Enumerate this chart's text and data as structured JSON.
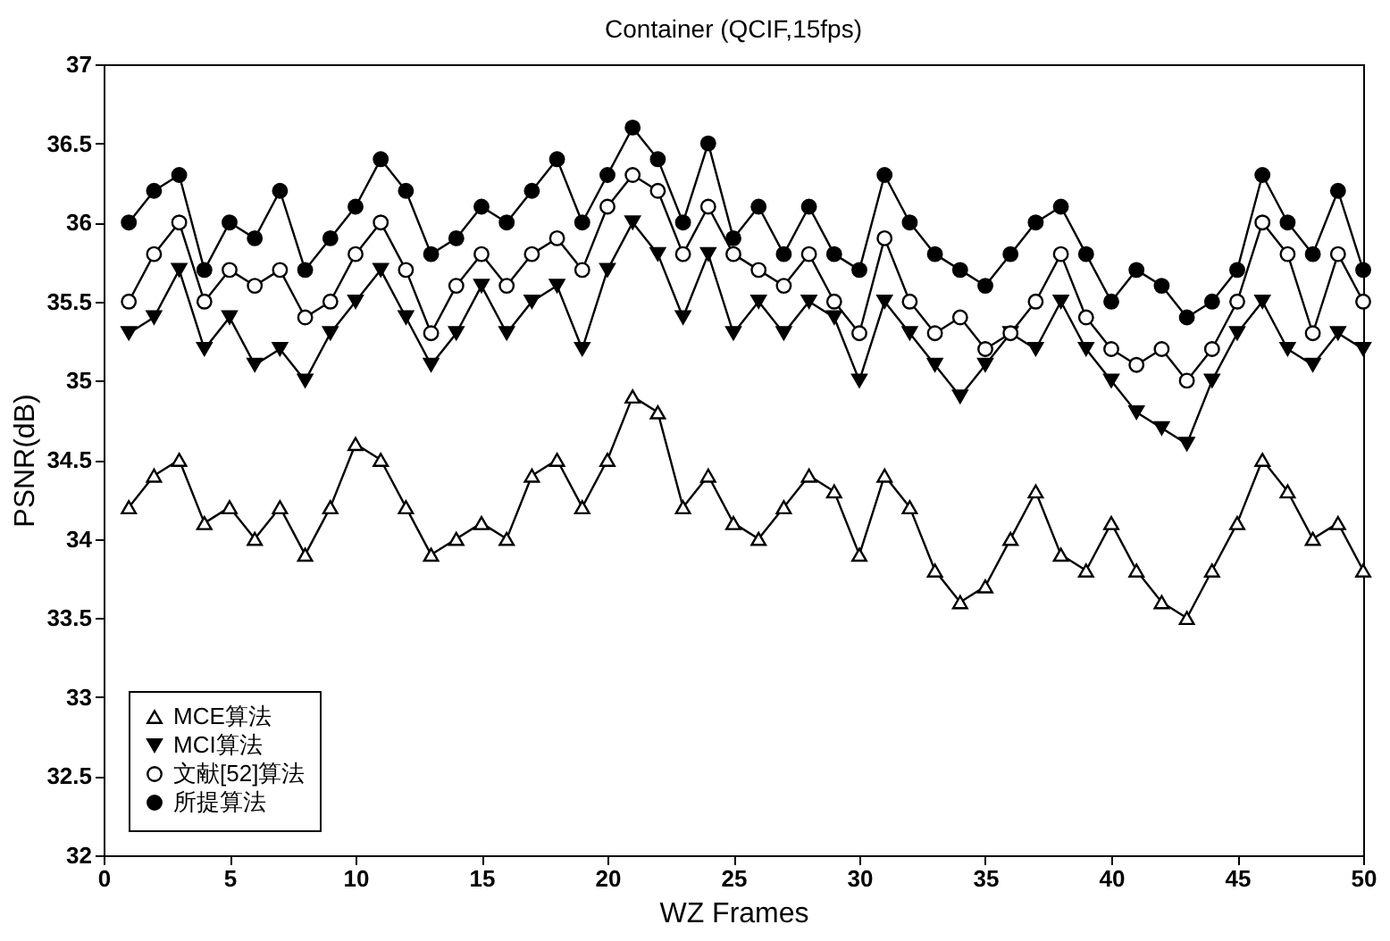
{
  "chart_data": {
    "type": "line",
    "title": "Container (QCIF,15fps)",
    "xlabel": "WZ Frames",
    "ylabel": "PSNR(dB)",
    "x": [
      1,
      2,
      3,
      4,
      5,
      6,
      7,
      8,
      9,
      10,
      11,
      12,
      13,
      14,
      15,
      16,
      17,
      18,
      19,
      20,
      21,
      22,
      23,
      24,
      25,
      26,
      27,
      28,
      29,
      30,
      31,
      32,
      33,
      34,
      35,
      36,
      37,
      38,
      39,
      40,
      41,
      42,
      43,
      44,
      45,
      46,
      47,
      48,
      49,
      50
    ],
    "series": [
      {
        "name": "MCE算法",
        "color": "#000000",
        "marker": "triangle-open",
        "values": [
          34.2,
          34.4,
          34.5,
          34.1,
          34.2,
          34.0,
          34.2,
          33.9,
          34.2,
          34.6,
          34.5,
          34.2,
          33.9,
          34.0,
          34.1,
          34.0,
          34.4,
          34.5,
          34.2,
          34.5,
          34.9,
          34.8,
          34.2,
          34.4,
          34.1,
          34.0,
          34.2,
          34.4,
          34.3,
          33.9,
          34.4,
          34.2,
          33.8,
          33.6,
          33.7,
          34.0,
          34.3,
          33.9,
          33.8,
          34.1,
          33.8,
          33.6,
          33.5,
          33.8,
          34.1,
          34.5,
          34.3,
          34.0,
          34.1,
          33.8
        ]
      },
      {
        "name": "MCI算法",
        "color": "#000000",
        "marker": "triangle-down",
        "values": [
          35.3,
          35.4,
          35.7,
          35.2,
          35.4,
          35.1,
          35.2,
          35.0,
          35.3,
          35.5,
          35.7,
          35.4,
          35.1,
          35.3,
          35.6,
          35.3,
          35.5,
          35.6,
          35.2,
          35.7,
          36.0,
          35.8,
          35.4,
          35.8,
          35.3,
          35.5,
          35.3,
          35.5,
          35.4,
          35.0,
          35.5,
          35.3,
          35.1,
          34.9,
          35.1,
          35.3,
          35.2,
          35.5,
          35.2,
          35.0,
          34.8,
          34.7,
          34.6,
          35.0,
          35.3,
          35.5,
          35.2,
          35.1,
          35.3,
          35.2
        ]
      },
      {
        "name": "文献[52]算法",
        "color": "#000000",
        "marker": "circle-open",
        "values": [
          35.5,
          35.8,
          36.0,
          35.5,
          35.7,
          35.6,
          35.7,
          35.4,
          35.5,
          35.8,
          36.0,
          35.7,
          35.3,
          35.6,
          35.8,
          35.6,
          35.8,
          35.9,
          35.7,
          36.1,
          36.3,
          36.2,
          35.8,
          36.1,
          35.8,
          35.7,
          35.6,
          35.8,
          35.5,
          35.3,
          35.9,
          35.5,
          35.3,
          35.4,
          35.2,
          35.3,
          35.5,
          35.8,
          35.4,
          35.2,
          35.1,
          35.2,
          35.0,
          35.2,
          35.5,
          36.0,
          35.8,
          35.3,
          35.8,
          35.5
        ]
      },
      {
        "name": "所提算法",
        "color": "#000000",
        "marker": "circle",
        "values": [
          36.0,
          36.2,
          36.3,
          35.7,
          36.0,
          35.9,
          36.2,
          35.7,
          35.9,
          36.1,
          36.4,
          36.2,
          35.8,
          35.9,
          36.1,
          36.0,
          36.2,
          36.4,
          36.0,
          36.3,
          36.6,
          36.4,
          36.0,
          36.5,
          35.9,
          36.1,
          35.8,
          36.1,
          35.8,
          35.7,
          36.3,
          36.0,
          35.8,
          35.7,
          35.6,
          35.8,
          36.0,
          36.1,
          35.8,
          35.5,
          35.7,
          35.6,
          35.4,
          35.5,
          35.7,
          36.3,
          36.0,
          35.8,
          36.2,
          35.7
        ]
      }
    ],
    "xlim": [
      0,
      50
    ],
    "xticks": [
      0,
      5,
      10,
      15,
      20,
      25,
      30,
      35,
      40,
      45,
      50
    ],
    "ylim": [
      32,
      37
    ],
    "yticks": [
      32,
      32.5,
      33,
      33.5,
      34,
      34.5,
      35,
      35.5,
      36,
      36.5,
      37
    ],
    "grid": false,
    "legend": "bottom left",
    "line_style": "solid"
  }
}
